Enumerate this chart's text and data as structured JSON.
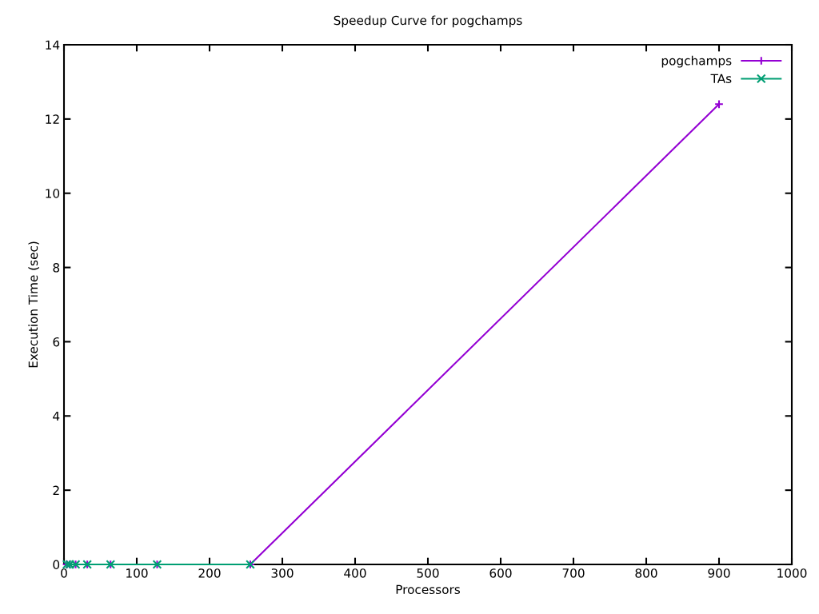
{
  "chart_data": {
    "type": "line",
    "title": "Speedup Curve for pogchamps",
    "xlabel": "Processors",
    "ylabel": "Execution Time (sec)",
    "xlim": [
      0,
      1000
    ],
    "xticks": [
      0,
      100,
      200,
      300,
      400,
      500,
      600,
      700,
      800,
      900,
      1000
    ],
    "ylim": [
      0,
      14
    ],
    "yticks": [
      0,
      2,
      4,
      6,
      8,
      10,
      12,
      14
    ],
    "grid": false,
    "legend": "top right",
    "series": [
      {
        "name": "pogchamps",
        "color": "#9400d3",
        "marker": "plus",
        "x": [
          4,
          8,
          16,
          32,
          64,
          128,
          256,
          900
        ],
        "values": [
          0,
          0,
          0,
          0,
          0,
          0,
          0,
          12.4
        ]
      },
      {
        "name": "TAs",
        "color": "#009e73",
        "marker": "cross",
        "x": [
          4,
          8,
          16,
          32,
          64,
          128,
          256
        ],
        "values": [
          0,
          0,
          0,
          0,
          0,
          0,
          0
        ]
      }
    ]
  }
}
